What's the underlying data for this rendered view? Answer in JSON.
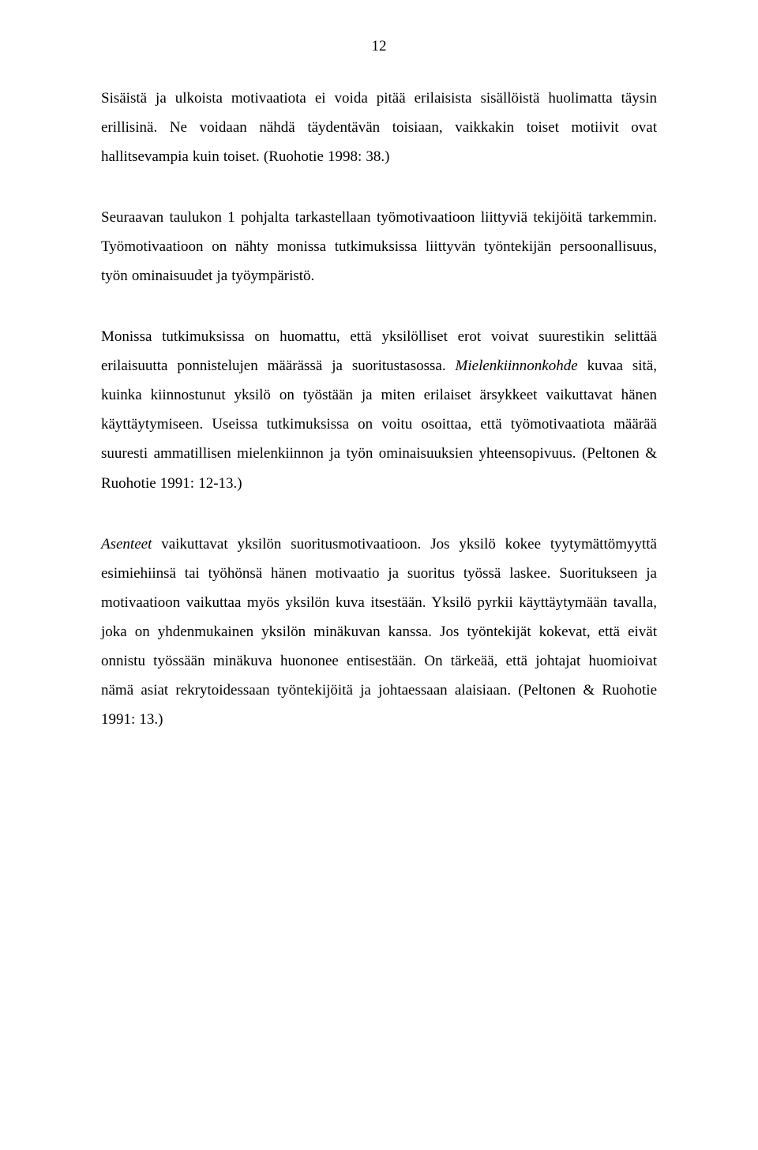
{
  "page_number": "12",
  "typography": {
    "font_family": "Palatino Linotype, Book Antiqua, Palatino, Georgia, serif",
    "body_fontsize_pt": 14,
    "line_height": 1.95,
    "text_color": "#000000",
    "background_color": "#ffffff",
    "alignment": "justify"
  },
  "paragraphs": {
    "p1": "Sisäistä ja ulkoista motivaatiota ei voida pitää erilaisista sisällöistä huolimatta täysin erillisinä. Ne voidaan nähdä täydentävän toisiaan, vaikkakin toiset motiivit ovat hallitsevampia kuin toiset. (Ruohotie 1998: 38.)",
    "p2": "Seuraavan taulukon 1 pohjalta tarkastellaan työmotivaatioon liittyviä tekijöitä tarkemmin. Työmotivaatioon on nähty monissa tutkimuksissa liittyvän työntekijän persoonallisuus, työn ominaisuudet ja työympäristö.",
    "p3_before_italic": "Monissa tutkimuksissa on huomattu, että yksilölliset erot voivat suurestikin selittää erilaisuutta ponnistelujen määrässä ja suoritustasossa. ",
    "p3_italic": "Mielenkiinnonkohde",
    "p3_after_italic": " kuvaa sitä, kuinka kiinnostunut yksilö on työstään ja miten erilaiset ärsykkeet vaikuttavat hänen käyttäytymiseen. Useissa tutkimuksissa on voitu osoittaa, että työmotivaatiota määrää suuresti ammatillisen mielenkiinnon ja työn ominaisuuksien yhteensopivuus. (Peltonen & Ruohotie 1991: 12-13.)",
    "p4_italic": "Asenteet",
    "p4_after_italic": " vaikuttavat yksilön suoritusmotivaatioon. Jos yksilö kokee tyytymättömyyttä esimiehiinsä tai työhönsä hänen motivaatio ja suoritus työssä laskee. Suoritukseen ja motivaatioon vaikuttaa myös yksilön kuva itsestään. Yksilö pyrkii käyttäytymään tavalla, joka on yhdenmukainen yksilön minäkuvan kanssa. Jos työntekijät kokevat, että eivät onnistu työssään minäkuva huononee entisestään. On tärkeää, että johtajat huomioivat nämä asiat rekrytoidessaan työntekijöitä ja johtaessaan alaisiaan. (Peltonen & Ruohotie 1991: 13.)"
  }
}
